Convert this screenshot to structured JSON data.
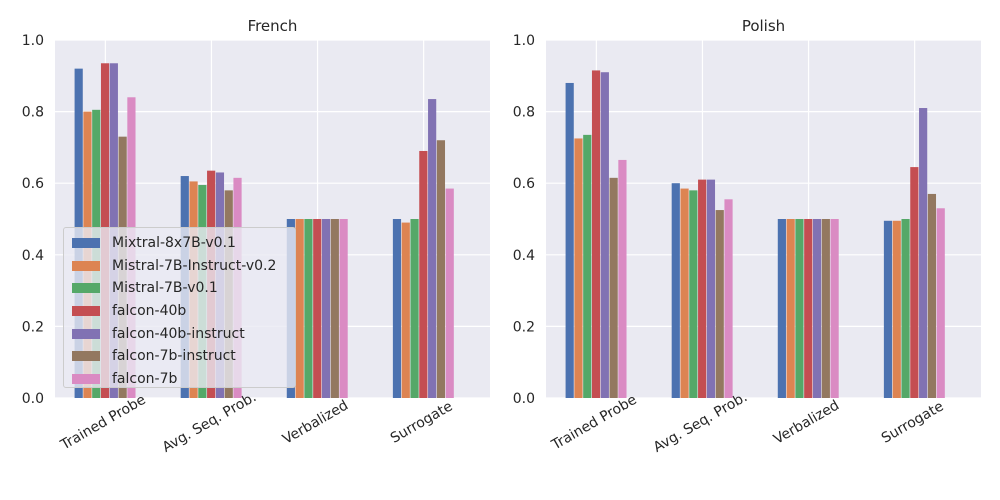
{
  "chart_data": [
    {
      "type": "bar",
      "title": "French",
      "categories": [
        "Trained Probe",
        "Avg. Seq. Prob.",
        "Verbalized",
        "Surrogate"
      ],
      "ylim": [
        0,
        1.0
      ],
      "yticks": [
        "0.0",
        "0.2",
        "0.4",
        "0.6",
        "0.8",
        "1.0"
      ],
      "grid": true,
      "legend": "lower-left",
      "series": [
        {
          "name": "Mixtral-8x7B-v0.1",
          "color": "#4c72b0",
          "values": [
            0.92,
            0.62,
            0.5,
            0.5
          ]
        },
        {
          "name": "Mistral-7B-Instruct-v0.2",
          "color": "#dd8452",
          "values": [
            0.8,
            0.605,
            0.5,
            0.49
          ]
        },
        {
          "name": "Mistral-7B-v0.1",
          "color": "#55a868",
          "values": [
            0.805,
            0.595,
            0.5,
            0.5
          ]
        },
        {
          "name": "falcon-40b",
          "color": "#c44e52",
          "values": [
            0.935,
            0.635,
            0.5,
            0.69
          ]
        },
        {
          "name": "falcon-40b-instruct",
          "color": "#8172b3",
          "values": [
            0.935,
            0.63,
            0.5,
            0.835
          ]
        },
        {
          "name": "falcon-7b-instruct",
          "color": "#937860",
          "values": [
            0.73,
            0.58,
            0.5,
            0.72
          ]
        },
        {
          "name": "falcon-7b",
          "color": "#da8bc3",
          "values": [
            0.84,
            0.615,
            0.5,
            0.585
          ]
        }
      ]
    },
    {
      "type": "bar",
      "title": "Polish",
      "categories": [
        "Trained Probe",
        "Avg. Seq. Prob.",
        "Verbalized",
        "Surrogate"
      ],
      "ylim": [
        0,
        1.0
      ],
      "yticks": [
        "0.0",
        "0.2",
        "0.4",
        "0.6",
        "0.8",
        "1.0"
      ],
      "grid": true,
      "series": [
        {
          "name": "Mixtral-8x7B-v0.1",
          "color": "#4c72b0",
          "values": [
            0.88,
            0.6,
            0.5,
            0.495
          ]
        },
        {
          "name": "Mistral-7B-Instruct-v0.2",
          "color": "#dd8452",
          "values": [
            0.725,
            0.585,
            0.5,
            0.495
          ]
        },
        {
          "name": "Mistral-7B-v0.1",
          "color": "#55a868",
          "values": [
            0.735,
            0.58,
            0.5,
            0.5
          ]
        },
        {
          "name": "falcon-40b",
          "color": "#c44e52",
          "values": [
            0.915,
            0.61,
            0.5,
            0.645
          ]
        },
        {
          "name": "falcon-40b-instruct",
          "color": "#8172b3",
          "values": [
            0.91,
            0.61,
            0.5,
            0.81
          ]
        },
        {
          "name": "falcon-7b-instruct",
          "color": "#937860",
          "values": [
            0.615,
            0.525,
            0.5,
            0.57
          ]
        },
        {
          "name": "falcon-7b",
          "color": "#da8bc3",
          "values": [
            0.665,
            0.555,
            0.5,
            0.53
          ]
        }
      ]
    }
  ]
}
